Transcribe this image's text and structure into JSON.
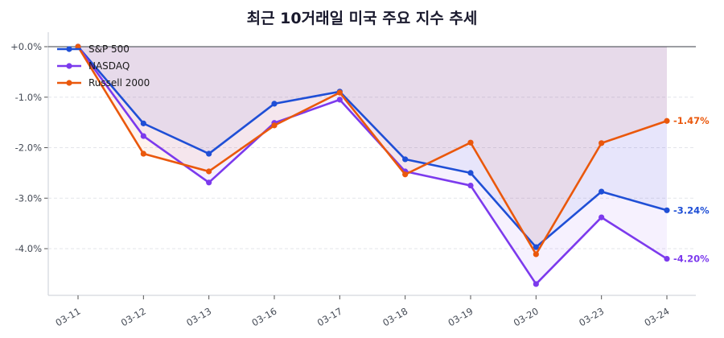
{
  "chart_data": {
    "type": "line",
    "title": "최근 10거래일 미국 주요 지수 추세",
    "xlabel": "",
    "ylabel": "",
    "categories": [
      "03-11",
      "03-12",
      "03-13",
      "03-16",
      "03-17",
      "03-18",
      "03-19",
      "03-20",
      "03-23",
      "03-24"
    ],
    "series": [
      {
        "name": "S&P 500",
        "color": "#1f4fd6",
        "values": [
          0.0,
          -1.52,
          -2.12,
          -1.13,
          -0.89,
          -2.23,
          -2.5,
          -3.97,
          -2.87,
          -3.24
        ],
        "end_label": "-3.24%"
      },
      {
        "name": "NASDAQ",
        "color": "#7c3aed",
        "values": [
          0.0,
          -1.77,
          -2.69,
          -1.51,
          -1.05,
          -2.47,
          -2.75,
          -4.7,
          -3.38,
          -4.2
        ],
        "end_label": "-4.20%"
      },
      {
        "name": "Russell 2000",
        "color": "#ea580c",
        "values": [
          0.0,
          -2.12,
          -2.47,
          -1.56,
          -0.91,
          -2.53,
          -1.9,
          -4.11,
          -1.91,
          -1.47
        ],
        "end_label": "-1.47%"
      }
    ],
    "yticks": [
      0.0,
      -1.0,
      -2.0,
      -3.0,
      -4.0
    ],
    "ytick_labels": [
      "+0.0%",
      "-1.0%",
      "-2.0%",
      "-3.0%",
      "-4.0%"
    ],
    "ylim": [
      -4.95,
      0.28
    ],
    "grid": "y-dashed",
    "legend_position": "upper-left",
    "baseline": 0.0
  }
}
